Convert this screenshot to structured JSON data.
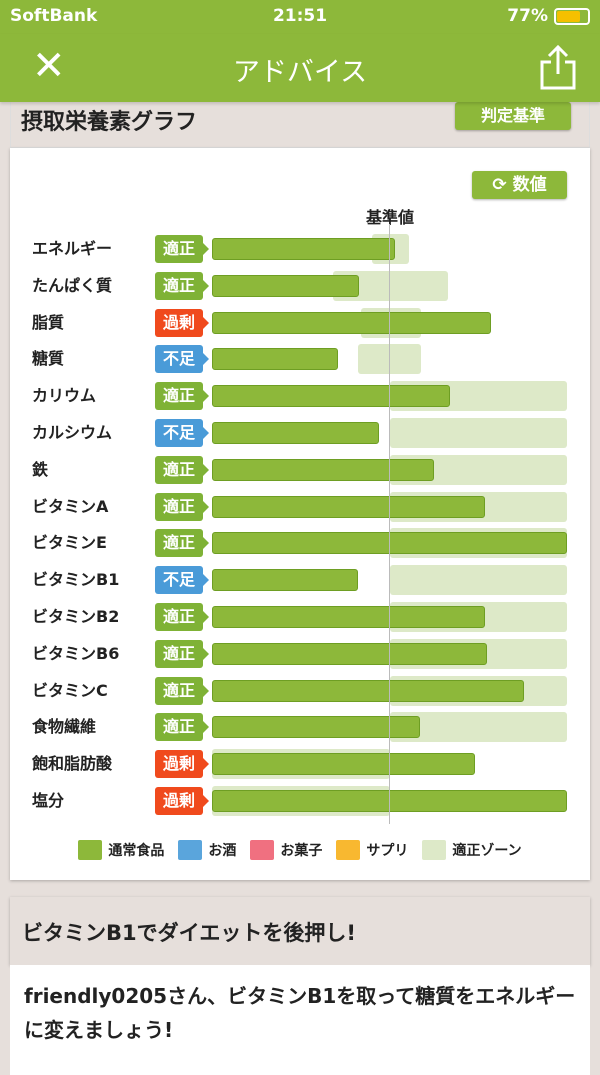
{
  "status": {
    "carrier": "SoftBank",
    "time": "21:51",
    "battery": "77%",
    "battery_level": 0.77
  },
  "nav": {
    "title": "アドバイス",
    "close_icon": "close-icon",
    "share_icon": "share-icon"
  },
  "graph": {
    "title": "摂取栄養素グラフ",
    "judge_button": "判定基準",
    "values_button": "数値",
    "baseline_label": "基準値"
  },
  "colors": {
    "food": "#8db83a",
    "alcohol": "#5aa5dc",
    "snack": "#f07080",
    "supplement": "#f8b830",
    "zone": "#dde9c8",
    "ok": "#7fb236",
    "over": "#f04a1d",
    "under": "#4a9bd8"
  },
  "chart_data": {
    "type": "bar",
    "unit": "percent of baseline",
    "xlim": [
      0,
      200
    ],
    "baseline": 100,
    "categories": [
      "エネルギー",
      "たんぱく質",
      "脂質",
      "糖質",
      "カリウム",
      "カルシウム",
      "鉄",
      "ビタミンA",
      "ビタミンE",
      "ビタミンB1",
      "ビタミンB2",
      "ビタミンB6",
      "ビタミンC",
      "食物繊維",
      "飽和脂肪酸",
      "塩分"
    ],
    "status": [
      "適正",
      "適正",
      "過剰",
      "不足",
      "適正",
      "不足",
      "適正",
      "適正",
      "適正",
      "不足",
      "適正",
      "適正",
      "適正",
      "適正",
      "過剰",
      "過剰"
    ],
    "status_type": [
      "ok",
      "ok",
      "over",
      "under",
      "ok",
      "under",
      "ok",
      "ok",
      "ok",
      "under",
      "ok",
      "ok",
      "ok",
      "ok",
      "over",
      "over"
    ],
    "values": [
      103,
      83,
      157,
      71,
      134,
      94,
      125,
      154,
      200,
      82,
      154,
      155,
      176,
      117,
      148,
      200
    ],
    "zones": [
      [
        90,
        111
      ],
      [
        68,
        133
      ],
      [
        84,
        118
      ],
      [
        82,
        118
      ],
      [
        100,
        200
      ],
      [
        100,
        200
      ],
      [
        100,
        200
      ],
      [
        100,
        200
      ],
      [
        100,
        200
      ],
      [
        100,
        200
      ],
      [
        100,
        200
      ],
      [
        100,
        200
      ],
      [
        100,
        200
      ],
      [
        100,
        200
      ],
      [
        0,
        100
      ],
      [
        0,
        100
      ]
    ]
  },
  "legend": [
    {
      "label": "通常食品",
      "color": "#8db83a"
    },
    {
      "label": "お酒",
      "color": "#5aa5dc"
    },
    {
      "label": "お菓子",
      "color": "#f07080"
    },
    {
      "label": "サプリ",
      "color": "#f8b830"
    },
    {
      "label": "適正ゾーン",
      "color": "#dde9c8"
    }
  ],
  "advice": {
    "title": "ビタミンB1でダイエットを後押し!",
    "body": "friendly0205さん、ビタミンB1を取って糖質をエネルギーに変えましょう!"
  }
}
